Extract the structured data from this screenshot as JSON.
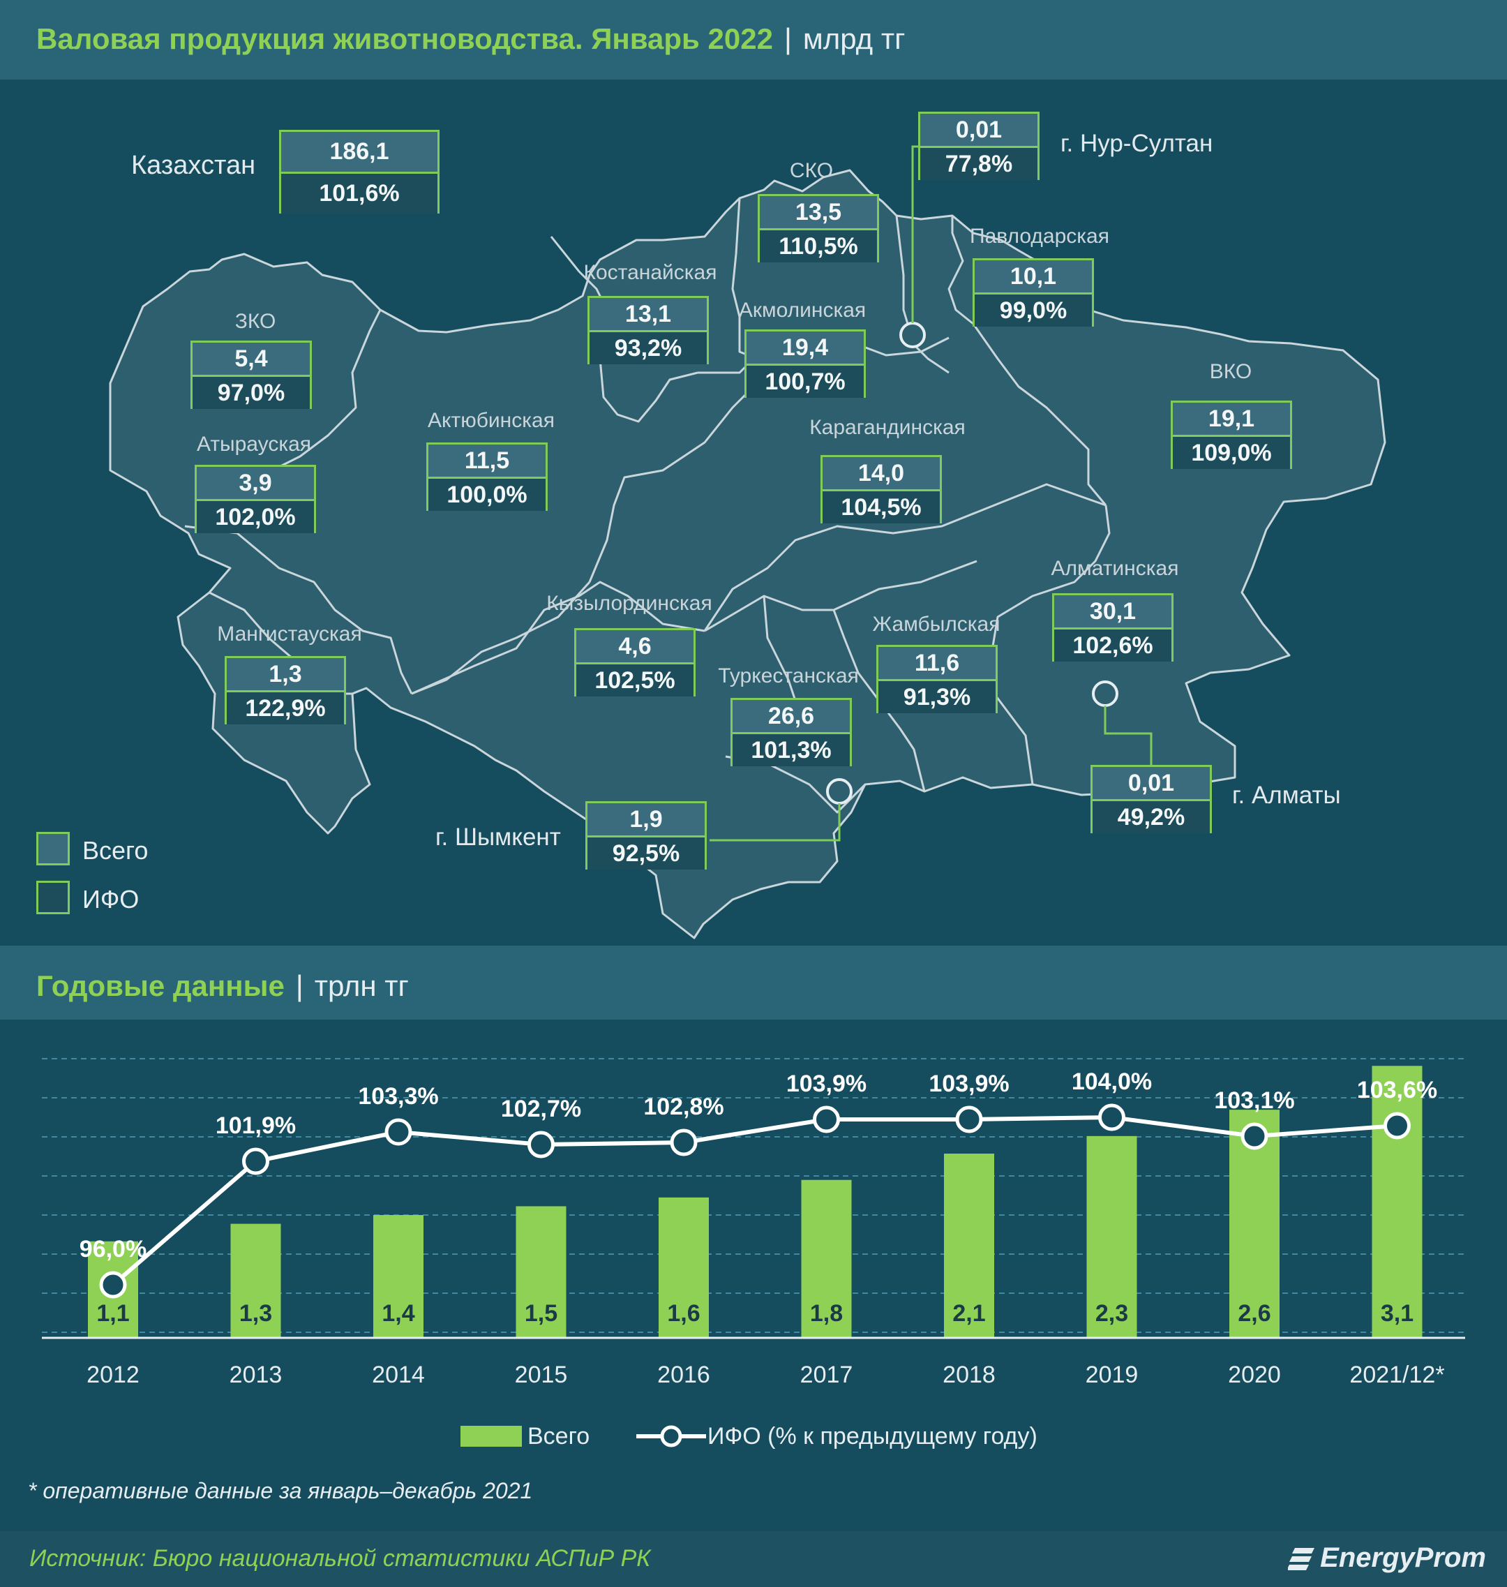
{
  "header_map": {
    "title": "Валовая продукция животноводства. Январь 2022",
    "unit": "млрд тг"
  },
  "header_annual": {
    "title": "Годовые данные",
    "unit": "трлн тг"
  },
  "kazakhstan": {
    "name": "Казахстан",
    "total": "186,1",
    "ifo": "101,6%"
  },
  "regions": [
    {
      "name": "ЗКО",
      "total": "5,4",
      "ifo": "97,0%"
    },
    {
      "name": "Атырауская",
      "total": "3,9",
      "ifo": "102,0%"
    },
    {
      "name": "Мангистауская",
      "total": "1,3",
      "ifo": "122,9%"
    },
    {
      "name": "Актюбинская",
      "total": "11,5",
      "ifo": "100,0%"
    },
    {
      "name": "Костанайская",
      "total": "13,1",
      "ifo": "93,2%"
    },
    {
      "name": "СКО",
      "total": "13,5",
      "ifo": "110,5%"
    },
    {
      "name": "Акмолинская",
      "total": "19,4",
      "ifo": "100,7%"
    },
    {
      "name": "Павлодарская",
      "total": "10,1",
      "ifo": "99,0%"
    },
    {
      "name": "ВКО",
      "total": "19,1",
      "ifo": "109,0%"
    },
    {
      "name": "Карагандинская",
      "total": "14,0",
      "ifo": "104,5%"
    },
    {
      "name": "Кызылординская",
      "total": "4,6",
      "ifo": "102,5%"
    },
    {
      "name": "Туркестанская",
      "total": "26,6",
      "ifo": "101,3%"
    },
    {
      "name": "Жамбылская",
      "total": "11,6",
      "ifo": "91,3%"
    },
    {
      "name": "Алматинская",
      "total": "30,1",
      "ifo": "102,6%"
    }
  ],
  "cities": [
    {
      "name": "г. Нур-Султан",
      "total": "0,01",
      "ifo": "77,8%"
    },
    {
      "name": "г. Шымкент",
      "total": "1,9",
      "ifo": "92,5%"
    },
    {
      "name": "г. Алматы",
      "total": "0,01",
      "ifo": "49,2%"
    }
  ],
  "map_legend": {
    "total": "Всего",
    "ifo": "ИФО"
  },
  "colors": {
    "background": "#164d5e",
    "header": "#2a6577",
    "accent_green": "#8ed155",
    "bar_green": "#8ed155",
    "box_border": "#7fcc5a",
    "map_fill": "#2e5f6e"
  },
  "chart_data": {
    "type": "bar",
    "categories": [
      "2012",
      "2013",
      "2014",
      "2015",
      "2016",
      "2017",
      "2018",
      "2019",
      "2020",
      "2021/12*"
    ],
    "series": [
      {
        "name": "Всего",
        "type": "bar",
        "values": [
          1.1,
          1.3,
          1.4,
          1.5,
          1.6,
          1.8,
          2.1,
          2.3,
          2.6,
          3.1
        ],
        "labels": [
          "1,1",
          "1,3",
          "1,4",
          "1,5",
          "1,6",
          "1,8",
          "2,1",
          "2,3",
          "2,6",
          "3,1"
        ]
      },
      {
        "name": "ИФО (% к предыдущему году)",
        "type": "line",
        "values": [
          96.0,
          101.9,
          103.3,
          102.7,
          102.8,
          103.9,
          103.9,
          104.0,
          103.1,
          103.6
        ],
        "labels": [
          "96,0%",
          "101,9%",
          "103,3%",
          "102,7%",
          "102,8%",
          "103,9%",
          "103,9%",
          "104,0%",
          "103,1%",
          "103,6%"
        ]
      }
    ],
    "ylim_bars": [
      0,
      3.5
    ],
    "ylim_line": [
      92,
      106
    ],
    "grid": true,
    "legend_position": "bottom"
  },
  "note": "* оперативные данные за январь–декабрь 2021",
  "footer": {
    "source": "Источник: Бюро национальной статистики АСПиР РК",
    "logo": "EnergyProm"
  }
}
